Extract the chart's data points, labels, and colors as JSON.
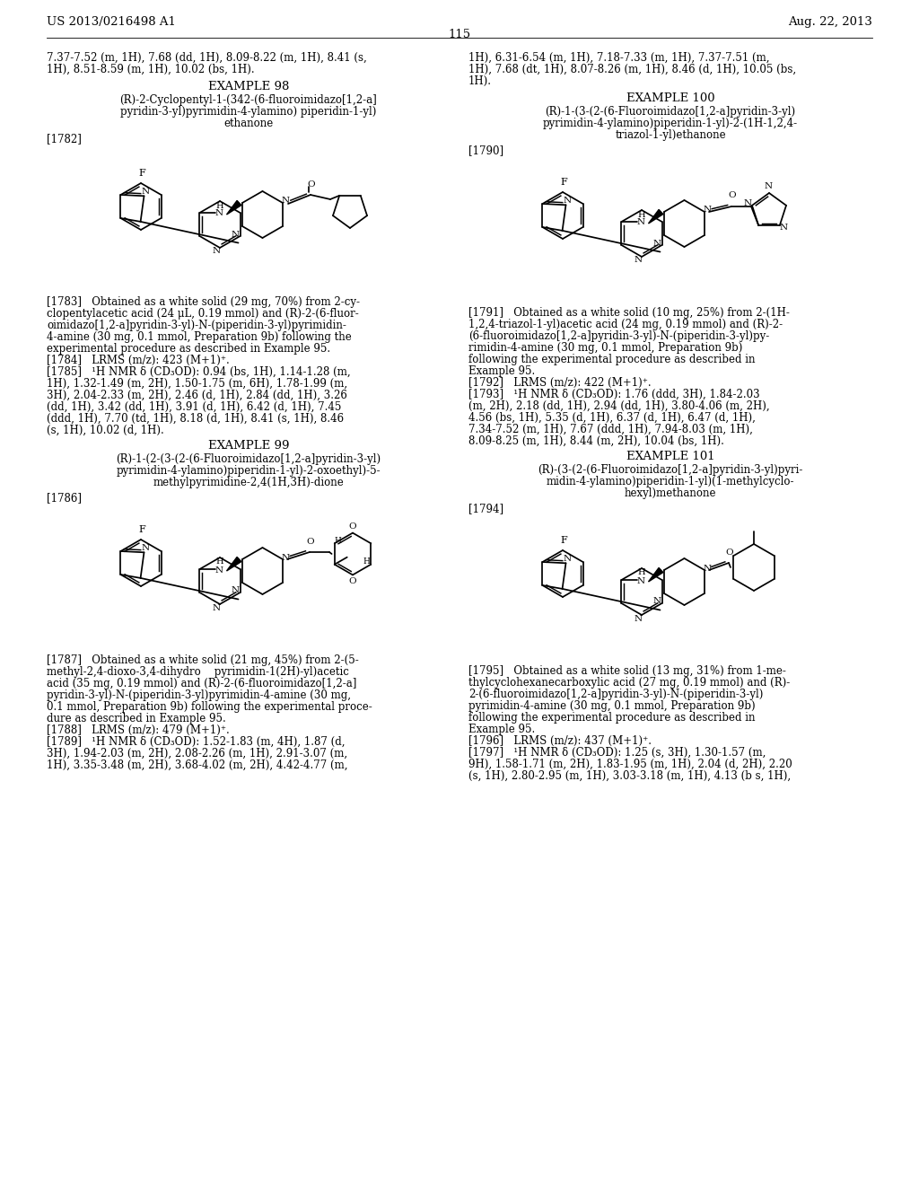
{
  "page_header_left": "US 2013/0216498 A1",
  "page_header_right": "Aug. 22, 2013",
  "page_number": "115",
  "bg_color": "#ffffff",
  "text_color": "#000000"
}
